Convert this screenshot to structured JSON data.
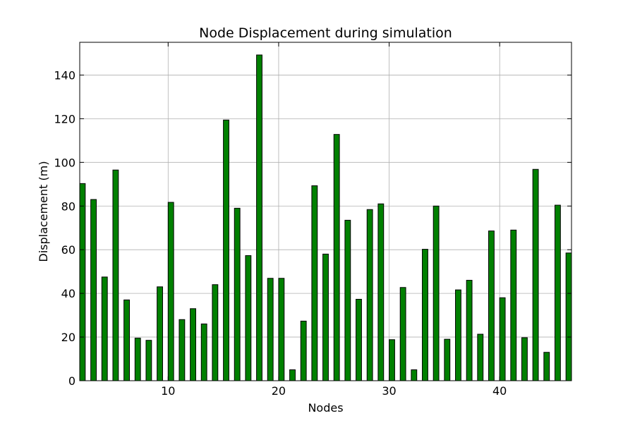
{
  "chart_data": {
    "type": "bar",
    "title": "Node Displacement during simulation",
    "xlabel": "Nodes",
    "ylabel": "Displacement (m)",
    "x": [
      2,
      3,
      4,
      5,
      6,
      7,
      8,
      9,
      10,
      11,
      12,
      13,
      14,
      15,
      16,
      17,
      18,
      19,
      20,
      21,
      22,
      23,
      24,
      25,
      26,
      27,
      28,
      29,
      30,
      31,
      32,
      33,
      34,
      35,
      36,
      37,
      38,
      39,
      40,
      41,
      42,
      43,
      44,
      45,
      46
    ],
    "values": [
      90.3,
      83.0,
      47.5,
      96.5,
      37.0,
      19.5,
      18.5,
      43.0,
      81.7,
      28.0,
      33.0,
      26.0,
      44.0,
      119.4,
      79.0,
      57.3,
      149.2,
      46.9,
      46.9,
      5.0,
      27.3,
      89.3,
      58.0,
      112.8,
      73.5,
      37.3,
      78.4,
      81.0,
      18.8,
      42.7,
      5.0,
      60.2,
      80.0,
      19.0,
      41.6,
      46.0,
      21.3,
      68.6,
      38.0,
      69.0,
      19.7,
      96.8,
      13.0,
      80.4,
      58.5
    ],
    "xlim": [
      2,
      46.5
    ],
    "ylim": [
      0,
      155
    ],
    "xticks": [
      10,
      20,
      30,
      40
    ],
    "yticks": [
      0,
      20,
      40,
      60,
      80,
      100,
      120,
      140
    ],
    "grid": true,
    "bar_color": "#008000",
    "edge_color": "#000000"
  }
}
